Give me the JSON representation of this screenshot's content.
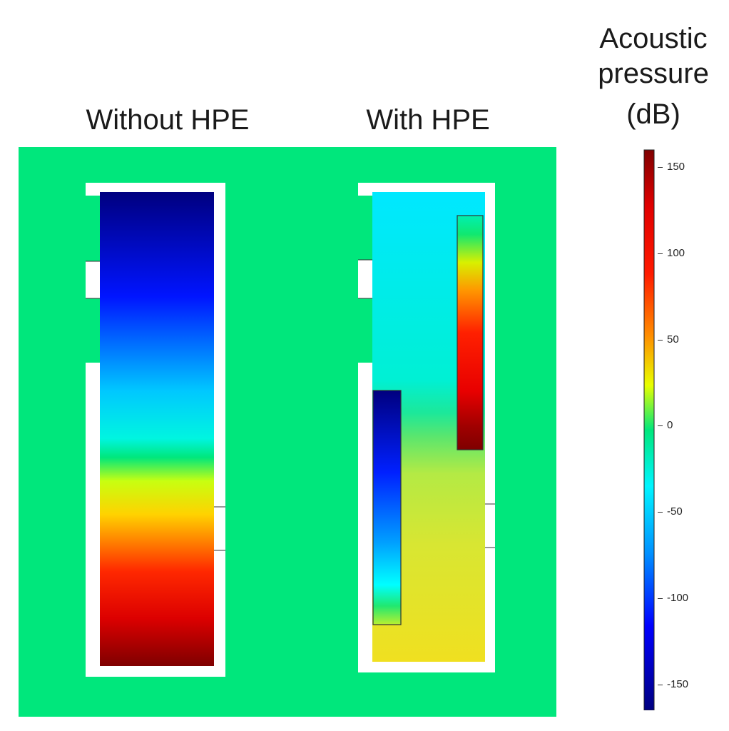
{
  "panels": {
    "left_title": "Without HPE",
    "right_title": "With HPE"
  },
  "colorbar": {
    "title_line1": "Acoustic",
    "title_line2": "pressure",
    "title_line3": "(dB)",
    "min": -165,
    "max": 160,
    "ticks": [
      {
        "value": 150,
        "label": "150"
      },
      {
        "value": 100,
        "label": "100"
      },
      {
        "value": 50,
        "label": "50"
      },
      {
        "value": 0,
        "label": "0"
      },
      {
        "value": -50,
        "label": "-50"
      },
      {
        "value": -100,
        "label": "-100"
      },
      {
        "value": -150,
        "label": "-150"
      }
    ],
    "colors": [
      "#00007f",
      "#0000ff",
      "#00ffff",
      "#00e27a",
      "#e5ff00",
      "#ff7f00",
      "#ff0000",
      "#7f0000"
    ]
  },
  "field_colors": {
    "background": "#00e77c",
    "frame": "#ffffff",
    "outline": "#333333"
  }
}
